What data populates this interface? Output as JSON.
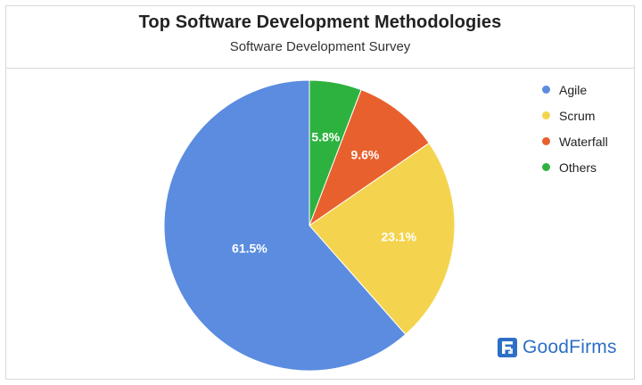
{
  "chart_data": {
    "type": "pie",
    "title": "Top Software Development Methodologies",
    "subtitle": "Software Development Survey",
    "legend_position": "top-right",
    "slices": [
      {
        "label": "Agile",
        "value": 61.5,
        "display": "61.5%",
        "color": "#5b8cdf"
      },
      {
        "label": "Scrum",
        "value": 23.1,
        "display": "23.1%",
        "color": "#f4d44e"
      },
      {
        "label": "Waterfall",
        "value": 9.6,
        "display": "9.6%",
        "color": "#e8602d"
      },
      {
        "label": "Others",
        "value": 5.8,
        "display": "5.8%",
        "color": "#2eb23f"
      }
    ]
  },
  "branding": {
    "logo_text": "GoodFirms",
    "logo_icon": "goodfirms-logo-icon",
    "logo_color": "#2d6fc6"
  }
}
